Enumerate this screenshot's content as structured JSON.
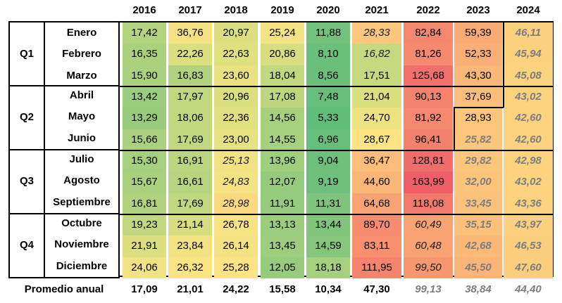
{
  "years": [
    "2016",
    "2017",
    "2018",
    "2019",
    "2020",
    "2021",
    "2022",
    "2023",
    "2024"
  ],
  "quarters": [
    {
      "label": "Q1",
      "months": [
        "Enero",
        "Febrero",
        "Marzo"
      ]
    },
    {
      "label": "Q2",
      "months": [
        "Abril",
        "Mayo",
        "Junio"
      ]
    },
    {
      "label": "Q3",
      "months": [
        "Julio",
        "Agosto",
        "Septiembre"
      ]
    },
    {
      "label": "Q4",
      "months": [
        "Octubre",
        "Noviembre",
        "Diciembre"
      ]
    }
  ],
  "rows": [
    [
      "17,42",
      "36,76",
      "20,97",
      "25,24",
      "11,88",
      "28,33",
      "82,84",
      "59,39",
      "46,11"
    ],
    [
      "16,35",
      "22,26",
      "22,63",
      "20,86",
      "8,10",
      "16,82",
      "81,26",
      "52,33",
      "45,94"
    ],
    [
      "15,90",
      "16,83",
      "23,60",
      "18,04",
      "8,56",
      "17,51",
      "125,68",
      "43,30",
      "45,08"
    ],
    [
      "13,42",
      "17,97",
      "20,96",
      "17,08",
      "7,48",
      "21,04",
      "90,13",
      "37,69",
      "43,02"
    ],
    [
      "13,29",
      "18,06",
      "22,36",
      "14,56",
      "5,33",
      "24,70",
      "81,92",
      "28,93",
      "42,60"
    ],
    [
      "15,66",
      "17,69",
      "23,00",
      "14,55",
      "6,96",
      "28,67",
      "96,41",
      "25,82",
      "42,60"
    ],
    [
      "15,30",
      "16,91",
      "25,13",
      "13,96",
      "9,04",
      "36,47",
      "128,81",
      "29,82",
      "42,98"
    ],
    [
      "15,67",
      "16,61",
      "24,83",
      "12,07",
      "9,19",
      "44,60",
      "163,99",
      "32,00",
      "43,02"
    ],
    [
      "16,81",
      "17,69",
      "28,98",
      "11,91",
      "11,31",
      "64,68",
      "118,08",
      "33,45",
      "43,36"
    ],
    [
      "19,23",
      "21,14",
      "26,78",
      "13,13",
      "13,44",
      "89,70",
      "60,49",
      "35,15",
      "43,97"
    ],
    [
      "21,91",
      "23,84",
      "26,14",
      "13,45",
      "14,59",
      "83,11",
      "60,48",
      "42,68",
      "46,53"
    ],
    [
      "24,06",
      "26,32",
      "25,28",
      "12,05",
      "18,18",
      "111,95",
      "99,50",
      "45,50",
      "47,60"
    ]
  ],
  "styles": [
    [
      "n",
      "n",
      "n",
      "n",
      "n",
      "i",
      "n",
      "n",
      "g"
    ],
    [
      "n",
      "n",
      "n",
      "n",
      "n",
      "i",
      "n",
      "n",
      "g"
    ],
    [
      "n",
      "n",
      "n",
      "n",
      "n",
      "n",
      "n",
      "n",
      "g"
    ],
    [
      "n",
      "n",
      "n",
      "n",
      "n",
      "n",
      "n",
      "n",
      "g"
    ],
    [
      "n",
      "n",
      "n",
      "n",
      "n",
      "n",
      "n",
      "n",
      "g"
    ],
    [
      "n",
      "n",
      "n",
      "n",
      "n",
      "n",
      "n",
      "g",
      "g"
    ],
    [
      "n",
      "n",
      "i",
      "n",
      "n",
      "n",
      "n",
      "g",
      "g"
    ],
    [
      "n",
      "n",
      "i",
      "n",
      "n",
      "n",
      "n",
      "g",
      "g"
    ],
    [
      "n",
      "n",
      "i",
      "n",
      "n",
      "n",
      "n",
      "g",
      "g"
    ],
    [
      "n",
      "n",
      "n",
      "n",
      "n",
      "n",
      "i",
      "g",
      "g"
    ],
    [
      "n",
      "n",
      "n",
      "n",
      "n",
      "n",
      "i",
      "g",
      "g"
    ],
    [
      "n",
      "n",
      "n",
      "n",
      "n",
      "n",
      "i",
      "g",
      "g"
    ]
  ],
  "colors": [
    [
      "#b3d47e",
      "#f7e183",
      "#dcdf7f",
      "#f3e383",
      "#73c17b",
      "#fbc77c",
      "#f4886e",
      "#f9aa75",
      "#fbd07e"
    ],
    [
      "#acd17d",
      "#dadf7f",
      "#e0e07f",
      "#d6de7f",
      "#6abf7b",
      "#c6d97e",
      "#f58a6f",
      "#faaf76",
      "#fbd17e"
    ],
    [
      "#aad17d",
      "#b1d27e",
      "#ebe181",
      "#c2d87e",
      "#6bbf7b",
      "#c6d97e",
      "#f0706b",
      "#f9b778",
      "#fbd27e"
    ],
    [
      "#9acd7d",
      "#c1d77e",
      "#dbdf7f",
      "#bdd67e",
      "#67be7b",
      "#dbdf7f",
      "#f3836d",
      "#fbbd79",
      "#fbd37f"
    ],
    [
      "#98cc7c",
      "#c3d87e",
      "#e0e07f",
      "#a7d07d",
      "#63bd7a",
      "#ede282",
      "#f5886e",
      "#fdc57c",
      "#fbd37f"
    ],
    [
      "#a8d07d",
      "#c0d77e",
      "#e7e180",
      "#a6d07d",
      "#66be7b",
      "#fde382",
      "#f2806d",
      "#fcc67c",
      "#fbd37f"
    ],
    [
      "#a6d07d",
      "#b9d57e",
      "#f1e382",
      "#9fce7d",
      "#6ebf7b",
      "#fbbd79",
      "#ef6d6a",
      "#fcc57c",
      "#fbd37f"
    ],
    [
      "#a8d07d",
      "#b7d47e",
      "#f3e383",
      "#95cb7c",
      "#6ebf7b",
      "#fab677",
      "#ee5f67",
      "#fcc37b",
      "#fbd37f"
    ],
    [
      "#b0d27e",
      "#c0d77e",
      "#fcd87f",
      "#94cb7c",
      "#7ec47c",
      "#f9a274",
      "#f07b6c",
      "#fcc27b",
      "#fbd27e"
    ],
    [
      "#c3d87e",
      "#d7de7f",
      "#f8e383",
      "#9acd7d",
      "#81c57c",
      "#f88c70",
      "#f9a273",
      "#fbc17b",
      "#fbd07e"
    ],
    [
      "#dcdf7f",
      "#f1e382",
      "#f5e383",
      "#9ecd7d",
      "#86c67c",
      "#f8906f",
      "#f9a274",
      "#fbb978",
      "#fbcf7d"
    ],
    [
      "#f1e382",
      "#fde483",
      "#fde383",
      "#97cc7c",
      "#a6d07d",
      "#f5836d",
      "#f7976f",
      "#fbb477",
      "#fbce7d"
    ]
  ],
  "footer": {
    "label": "Promedio anual",
    "values": [
      "17,09",
      "21,01",
      "24,22",
      "15,58",
      "10,34",
      "47,30",
      "99,13",
      "38,84",
      "44,40"
    ],
    "styles": [
      "n",
      "n",
      "n",
      "n",
      "n",
      "n",
      "g",
      "g",
      "g"
    ]
  }
}
